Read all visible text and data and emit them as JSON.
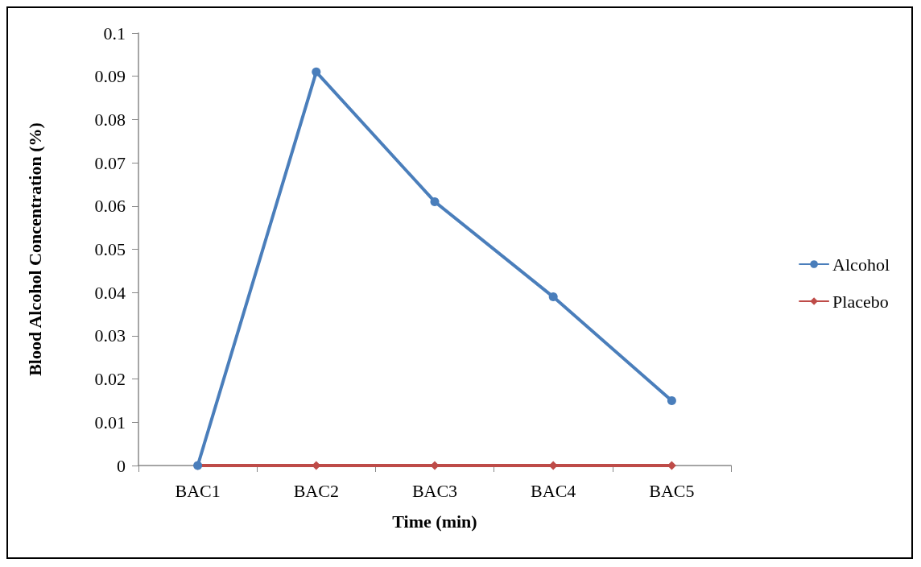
{
  "chart_data": {
    "type": "line",
    "xlabel": "Time (min)",
    "ylabel": "Blood Alcohol Concentration (%)",
    "categories": [
      "BAC1",
      "BAC2",
      "BAC3",
      "BAC4",
      "BAC5"
    ],
    "series": [
      {
        "name": "Alcohol",
        "color": "#4a7ebb",
        "marker": "circle",
        "values": [
          0,
          0.091,
          0.061,
          0.039,
          0.015
        ]
      },
      {
        "name": "Placebo",
        "color": "#be4b48",
        "marker": "diamond",
        "values": [
          0,
          0,
          0,
          0,
          0
        ]
      }
    ],
    "ylim": [
      0,
      0.1
    ],
    "yticks": [
      0,
      0.01,
      0.02,
      0.03,
      0.04,
      0.05,
      0.06,
      0.07,
      0.08,
      0.09,
      0.1
    ],
    "grid": false,
    "legend": "right",
    "line_style": "solid"
  }
}
